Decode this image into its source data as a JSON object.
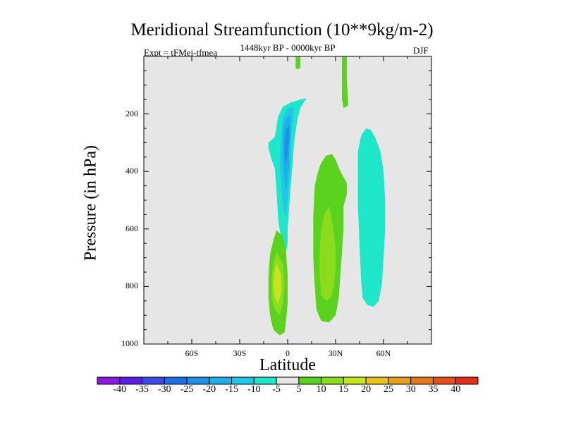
{
  "chart_data": {
    "type": "heatmap",
    "title": "Meridional Streamfunction (10**9kg/m-2)",
    "subtitle": "1448kyr BP - 0000kyr BP",
    "expt_label": "Expt = tFMei-tfmea",
    "season": "DJF",
    "xlabel": "Latitude",
    "ylabel": "Pressure (in hPa)",
    "xlim": [
      -90,
      90
    ],
    "ylim": [
      1000,
      0
    ],
    "x_ticks": [
      {
        "value": -60,
        "label": "60S"
      },
      {
        "value": -30,
        "label": "30S"
      },
      {
        "value": 0,
        "label": "0"
      },
      {
        "value": 30,
        "label": "30N"
      },
      {
        "value": 60,
        "label": "60N"
      }
    ],
    "y_ticks": [
      {
        "value": 200,
        "label": "200"
      },
      {
        "value": 400,
        "label": "400"
      },
      {
        "value": 600,
        "label": "600"
      },
      {
        "value": 800,
        "label": "800"
      },
      {
        "value": 1000,
        "label": "1000"
      }
    ],
    "background_color": "#e6e6e6",
    "colorbar": {
      "labels": [
        "-40",
        "-35",
        "-30",
        "-25",
        "-20",
        "-15",
        "-10",
        "-5",
        "5",
        "10",
        "15",
        "20",
        "25",
        "30",
        "35",
        "40"
      ],
      "colors": [
        "#8a1ae0",
        "#5a1ee6",
        "#3c4be6",
        "#1e6ee6",
        "#1e91e6",
        "#1eafe6",
        "#1ec8e6",
        "#1ee6c8",
        "#e6e6e6",
        "#5ad21e",
        "#8cdc1e",
        "#c3e61e",
        "#e6c31e",
        "#e6a01e",
        "#e6781e",
        "#e6501e",
        "#e62d1e"
      ]
    },
    "regions": [
      {
        "name": "eq-jet-strip",
        "level": 5,
        "color": "#5ad21e",
        "points": [
          [
            5,
            0
          ],
          [
            8,
            0
          ],
          [
            8,
            40
          ],
          [
            6,
            45
          ],
          [
            5,
            40
          ]
        ]
      },
      {
        "name": "nh-upper-strip",
        "level": 5,
        "color": "#5ad21e",
        "points": [
          [
            34,
            0
          ],
          [
            37,
            0
          ],
          [
            37,
            80
          ],
          [
            38,
            170
          ],
          [
            35,
            180
          ],
          [
            34,
            150
          ],
          [
            34,
            80
          ]
        ]
      },
      {
        "name": "tropical-upper-cell-outer",
        "level": -5,
        "color": "#1ee6c8",
        "points": [
          [
            12,
            145
          ],
          [
            10,
            160
          ],
          [
            8,
            180
          ],
          [
            6,
            220
          ],
          [
            4,
            300
          ],
          [
            3,
            380
          ],
          [
            2,
            450
          ],
          [
            1,
            520
          ],
          [
            0,
            600
          ],
          [
            0,
            650
          ],
          [
            -1,
            680
          ],
          [
            -4,
            640
          ],
          [
            -6,
            560
          ],
          [
            -7,
            460
          ],
          [
            -8,
            390
          ],
          [
            -10,
            360
          ],
          [
            -11,
            340
          ],
          [
            -12,
            320
          ],
          [
            -12,
            300
          ],
          [
            -8,
            280
          ],
          [
            -6,
            210
          ],
          [
            -3,
            175
          ],
          [
            2,
            160
          ],
          [
            8,
            150
          ]
        ]
      },
      {
        "name": "tropical-upper-cell-mid",
        "level": -10,
        "color": "#1ec8e6",
        "points": [
          [
            4,
            175
          ],
          [
            3,
            230
          ],
          [
            2,
            300
          ],
          [
            2,
            360
          ],
          [
            1,
            430
          ],
          [
            0,
            500
          ],
          [
            -1,
            560
          ],
          [
            -3,
            520
          ],
          [
            -4,
            440
          ],
          [
            -5,
            360
          ],
          [
            -4,
            280
          ],
          [
            -3,
            210
          ],
          [
            0,
            180
          ]
        ]
      },
      {
        "name": "tropical-upper-cell-core",
        "level": -15,
        "color": "#1eafe6",
        "points": [
          [
            2,
            205
          ],
          [
            2,
            260
          ],
          [
            1,
            320
          ],
          [
            1,
            380
          ],
          [
            0,
            430
          ],
          [
            -1,
            470
          ],
          [
            -2,
            430
          ],
          [
            -3,
            360
          ],
          [
            -3,
            290
          ],
          [
            -2,
            230
          ],
          [
            0,
            210
          ]
        ]
      },
      {
        "name": "tropical-upper-cell-max",
        "level": -20,
        "color": "#1e91e6",
        "points": [
          [
            1,
            240
          ],
          [
            1,
            290
          ],
          [
            0,
            340
          ],
          [
            -1,
            380
          ],
          [
            -2,
            350
          ],
          [
            -2,
            300
          ],
          [
            -1,
            255
          ]
        ]
      },
      {
        "name": "sh-lower-cell-outer",
        "level": 5,
        "color": "#5ad21e",
        "points": [
          [
            -7,
            605
          ],
          [
            -3,
            625
          ],
          [
            -1,
            680
          ],
          [
            0,
            760
          ],
          [
            0,
            860
          ],
          [
            -1,
            920
          ],
          [
            -2,
            960
          ],
          [
            -5,
            970
          ],
          [
            -9,
            950
          ],
          [
            -11,
            900
          ],
          [
            -12,
            840
          ],
          [
            -12,
            760
          ],
          [
            -11,
            690
          ],
          [
            -9,
            640
          ]
        ]
      },
      {
        "name": "sh-lower-cell-inner",
        "level": 10,
        "color": "#8cdc1e",
        "points": [
          [
            -7,
            680
          ],
          [
            -3,
            720
          ],
          [
            -2,
            790
          ],
          [
            -3,
            860
          ],
          [
            -5,
            900
          ],
          [
            -8,
            880
          ],
          [
            -10,
            840
          ],
          [
            -10,
            770
          ],
          [
            -9,
            720
          ]
        ]
      },
      {
        "name": "sh-lower-cell-core",
        "level": 15,
        "color": "#c3e61e",
        "points": [
          [
            -7,
            720
          ],
          [
            -4,
            760
          ],
          [
            -4,
            820
          ],
          [
            -6,
            860
          ],
          [
            -8,
            840
          ],
          [
            -9,
            790
          ],
          [
            -8,
            745
          ]
        ]
      },
      {
        "name": "nh-lower-cell-outer",
        "level": 5,
        "color": "#5ad21e",
        "points": [
          [
            24,
            345
          ],
          [
            28,
            340
          ],
          [
            30,
            360
          ],
          [
            33,
            400
          ],
          [
            37,
            440
          ],
          [
            37,
            480
          ],
          [
            35,
            520
          ],
          [
            35,
            600
          ],
          [
            34,
            680
          ],
          [
            33,
            760
          ],
          [
            32,
            840
          ],
          [
            30,
            900
          ],
          [
            26,
            925
          ],
          [
            21,
            920
          ],
          [
            18,
            880
          ],
          [
            17,
            800
          ],
          [
            16,
            700
          ],
          [
            16,
            560
          ],
          [
            17,
            450
          ],
          [
            19,
            400
          ],
          [
            21,
            370
          ]
        ]
      },
      {
        "name": "nh-lower-cell-inner",
        "level": 10,
        "color": "#8cdc1e",
        "points": [
          [
            26,
            520
          ],
          [
            28,
            580
          ],
          [
            30,
            660
          ],
          [
            30,
            740
          ],
          [
            29,
            800
          ],
          [
            27,
            840
          ],
          [
            24,
            850
          ],
          [
            21,
            830
          ],
          [
            20,
            760
          ],
          [
            20,
            680
          ],
          [
            21,
            600
          ],
          [
            23,
            550
          ]
        ]
      },
      {
        "name": "nh-midlat-cell-outer",
        "level": -5,
        "color": "#1ee6c8",
        "points": [
          [
            49,
            250
          ],
          [
            52,
            255
          ],
          [
            55,
            285
          ],
          [
            58,
            330
          ],
          [
            60,
            400
          ],
          [
            61,
            500
          ],
          [
            61,
            600
          ],
          [
            60,
            700
          ],
          [
            59,
            790
          ],
          [
            57,
            850
          ],
          [
            54,
            870
          ],
          [
            50,
            865
          ],
          [
            47,
            840
          ],
          [
            46,
            780
          ],
          [
            45,
            660
          ],
          [
            44,
            520
          ],
          [
            44,
            400
          ],
          [
            44,
            330
          ],
          [
            46,
            275
          ]
        ]
      }
    ]
  }
}
